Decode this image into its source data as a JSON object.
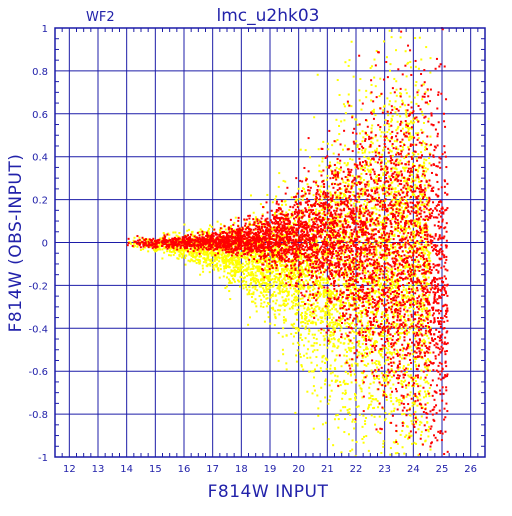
{
  "chart_data": {
    "type": "scatter",
    "panel_label": "WF2",
    "title": "lmc_u2hk03",
    "xlabel": "F814W INPUT",
    "ylabel": "F814W (OBS-INPUT)",
    "xlim": [
      11.5,
      26.5
    ],
    "ylim": [
      -1,
      1
    ],
    "x_ticks": [
      12,
      13,
      14,
      15,
      16,
      17,
      18,
      19,
      20,
      21,
      22,
      23,
      24,
      25,
      26
    ],
    "y_ticks": [
      -1,
      -0.8,
      -0.6,
      -0.4,
      -0.2,
      0,
      0.2,
      0.4,
      0.6,
      0.8,
      1
    ],
    "grid": true,
    "series": [
      {
        "color": "#ffff00",
        "envelope": [
          {
            "x": 14.0,
            "y_center": -0.005,
            "y_spread": 0.015
          },
          {
            "x": 15.0,
            "y_center": -0.01,
            "y_spread": 0.02
          },
          {
            "x": 16.0,
            "y_center": -0.02,
            "y_spread": 0.03
          },
          {
            "x": 17.0,
            "y_center": -0.04,
            "y_spread": 0.05
          },
          {
            "x": 18.0,
            "y_center": -0.07,
            "y_spread": 0.08
          },
          {
            "x": 19.0,
            "y_center": -0.1,
            "y_spread": 0.12
          },
          {
            "x": 20.0,
            "y_center": -0.13,
            "y_spread": 0.18
          },
          {
            "x": 21.0,
            "y_center": -0.15,
            "y_spread": 0.28
          },
          {
            "x": 22.0,
            "y_center": -0.15,
            "y_spread": 0.38
          },
          {
            "x": 23.0,
            "y_center": -0.12,
            "y_spread": 0.45
          },
          {
            "x": 24.0,
            "y_center": -0.12,
            "y_spread": 0.45
          },
          {
            "x": 24.6,
            "y_center": -0.15,
            "y_spread": 0.45
          }
        ],
        "x_range": [
          14.0,
          24.6
        ]
      },
      {
        "color": "#ff0000",
        "envelope": [
          {
            "x": 14.0,
            "y_center": 0.0,
            "y_spread": 0.01
          },
          {
            "x": 15.0,
            "y_center": 0.0,
            "y_spread": 0.012
          },
          {
            "x": 16.0,
            "y_center": 0.0,
            "y_spread": 0.015
          },
          {
            "x": 17.0,
            "y_center": 0.005,
            "y_spread": 0.02
          },
          {
            "x": 18.0,
            "y_center": 0.01,
            "y_spread": 0.035
          },
          {
            "x": 19.0,
            "y_center": 0.02,
            "y_spread": 0.06
          },
          {
            "x": 20.0,
            "y_center": 0.03,
            "y_spread": 0.1
          },
          {
            "x": 21.0,
            "y_center": 0.03,
            "y_spread": 0.16
          },
          {
            "x": 22.0,
            "y_center": 0.0,
            "y_spread": 0.25
          },
          {
            "x": 23.0,
            "y_center": -0.05,
            "y_spread": 0.35
          },
          {
            "x": 24.0,
            "y_center": -0.1,
            "y_spread": 0.4
          },
          {
            "x": 25.2,
            "y_center": -0.25,
            "y_spread": 0.45
          }
        ],
        "x_range": [
          14.0,
          25.2
        ]
      }
    ]
  },
  "colors": {
    "axis": "#1c1ca8",
    "grid": "#1c1ca8",
    "text": "#2222aa",
    "background": "#ffffff"
  }
}
